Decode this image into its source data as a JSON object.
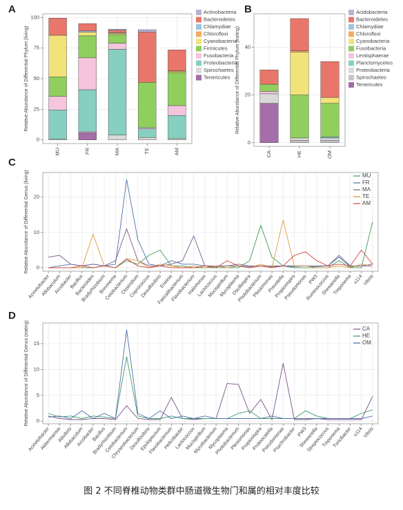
{
  "chart_data": [
    {
      "type": "bar",
      "stacked": true,
      "label": "A",
      "y_label": "Relative Abundance of Differential Phylum (living)",
      "categories": [
        "MU",
        "FR",
        "MA",
        "TE",
        "AM"
      ],
      "ylim": [
        -3,
        103
      ],
      "yticks": [
        0,
        25,
        50,
        75,
        100
      ],
      "grid": true,
      "series": [
        {
          "name": "Actinobacteria",
          "color": "#b9b3d3",
          "values": [
            0,
            0,
            1,
            2,
            0
          ]
        },
        {
          "name": "Bacteroidetes",
          "color": "#e8766a",
          "values": [
            14,
            6,
            2,
            41,
            17
          ]
        },
        {
          "name": "Chlamydiae",
          "color": "#9ec5df",
          "values": [
            0,
            1,
            0.5,
            0,
            0
          ]
        },
        {
          "name": "Chloroflexi",
          "color": "#f3ac62",
          "values": [
            0,
            0,
            0,
            0,
            0.5
          ]
        },
        {
          "name": "Cyanobacteria",
          "color": "#f1e27a",
          "values": [
            34,
            3,
            1,
            0,
            1
          ]
        },
        {
          "name": "Firmicutes",
          "color": "#90cf5e",
          "values": [
            16,
            18,
            7,
            37,
            27
          ]
        },
        {
          "name": "Fusobacteria",
          "color": "#f4c5dd",
          "values": [
            11,
            26,
            5,
            1,
            8
          ]
        },
        {
          "name": "Proteobacteria",
          "color": "#87cfc0",
          "values": [
            24,
            34,
            70,
            7,
            19
          ]
        },
        {
          "name": "Spirochaetes",
          "color": "#d9d9d9",
          "values": [
            0.5,
            1,
            4,
            2,
            1
          ]
        },
        {
          "name": "Tenericutes",
          "color": "#a66ea8",
          "values": [
            0,
            6,
            0,
            0,
            0
          ]
        }
      ]
    },
    {
      "type": "bar",
      "stacked": true,
      "label": "B",
      "y_label": "Relative Abundance of Differential Phylum (eating)",
      "categories": [
        "CA",
        "HE",
        "OM"
      ],
      "ylim": [
        -1.5,
        54
      ],
      "yticks": [
        0,
        20,
        40
      ],
      "grid": true,
      "series": [
        {
          "name": "Acidobacteria",
          "color": "#b9b3d3",
          "values": [
            0,
            0,
            0
          ]
        },
        {
          "name": "Bacteroidetes",
          "color": "#e8766a",
          "values": [
            6,
            13.5,
            15
          ]
        },
        {
          "name": "Chlamydiae",
          "color": "#9ec5df",
          "values": [
            0,
            0,
            0
          ]
        },
        {
          "name": "Chloroflexi",
          "color": "#f3ac62",
          "values": [
            0,
            0.5,
            0
          ]
        },
        {
          "name": "Cyanobacteria",
          "color": "#f1e27a",
          "values": [
            0,
            18,
            2.5
          ]
        },
        {
          "name": "Fusobacteria",
          "color": "#90cf5e",
          "values": [
            3,
            18,
            14
          ]
        },
        {
          "name": "Lentisphaerae",
          "color": "#f4c5dd",
          "values": [
            1,
            0,
            0
          ]
        },
        {
          "name": "Planctomycetes",
          "color": "#87cfc0",
          "values": [
            0,
            0,
            0.5
          ]
        },
        {
          "name": "Proteobacteria",
          "color": "#d9d9d9",
          "values": [
            4,
            1,
            1
          ]
        },
        {
          "name": "Spirochaetes",
          "color": "#c6c6c6",
          "values": [
            0,
            1,
            1
          ]
        },
        {
          "name": "Tenericutes",
          "color": "#a66ea8",
          "values": [
            16.5,
            0,
            0
          ]
        }
      ]
    },
    {
      "type": "line",
      "label": "C",
      "y_label": "Relative Abundance of Differential Genus (living)",
      "categories": [
        "Acinetobacter",
        "Allobaculum",
        "Arcobacter",
        "Bacillus",
        "Bacteroides",
        "Bradyrhizobium",
        "Brevinema",
        "Cetobacterium",
        "Clostridium",
        "Coprococcus",
        "Desulfovibrio",
        "Erwinia",
        "Faecalibacterium",
        "Flavobacterium",
        "Halomonas",
        "Lactococcus",
        "Mucispirillum",
        "Mycoplasma",
        "Oscillospira",
        "Photobacterium",
        "Plesiomonas",
        "Prevotella",
        "Propionispira",
        "Pseudomonas",
        "PW3",
        "Ruminococcus",
        "Shewanella",
        "Treponema",
        "u114",
        "Vibrio"
      ],
      "ylim": [
        -1,
        27
      ],
      "yticks": [
        0,
        10,
        20
      ],
      "grid": true,
      "series": [
        {
          "name": "MU",
          "color": "#3d9a50",
          "values": [
            0,
            0,
            0,
            0,
            0,
            0.5,
            0,
            2,
            1,
            3.5,
            5,
            0.5,
            0.5,
            0,
            0,
            0,
            0,
            0,
            2,
            12,
            3,
            0.5,
            0,
            0,
            0,
            0,
            2,
            0,
            0,
            13
          ]
        },
        {
          "name": "FR",
          "color": "#4a6fa5",
          "values": [
            0,
            0.5,
            1,
            0.5,
            1,
            0.5,
            1,
            25,
            8,
            1,
            0.5,
            2,
            1,
            1,
            0.5,
            0.3,
            0.5,
            0.5,
            0.3,
            0.5,
            0.3,
            0.5,
            0.3,
            0.5,
            0.3,
            0.5,
            3,
            0.3,
            0.5,
            1
          ]
        },
        {
          "name": "MA",
          "color": "#7a5a8a",
          "values": [
            3,
            3.5,
            1,
            0.5,
            1,
            0.5,
            2,
            11,
            2,
            0.5,
            0.5,
            1,
            2,
            9,
            0.5,
            0.5,
            0.5,
            1,
            0.5,
            0.5,
            0.5,
            0.5,
            0.5,
            0.5,
            0.5,
            0.5,
            3.5,
            0.5,
            0.5,
            0.5
          ]
        },
        {
          "name": "TE",
          "color": "#e09a3a",
          "values": [
            0,
            0,
            0,
            0,
            9.5,
            0.5,
            0,
            2.5,
            2,
            0,
            1,
            0.5,
            0,
            0.5,
            0,
            0.5,
            0,
            0.5,
            0,
            1,
            0,
            13.5,
            0.5,
            0.5,
            0,
            0,
            0.5,
            0,
            1,
            0.5
          ]
        },
        {
          "name": "AM",
          "color": "#d04040",
          "values": [
            0,
            0,
            0,
            0.5,
            0,
            0.5,
            0,
            2.5,
            0.5,
            0,
            0.5,
            0,
            0,
            0,
            0.5,
            0,
            2,
            0.5,
            0,
            0.5,
            0,
            0.5,
            3.5,
            4.5,
            2,
            0.5,
            1,
            0.5,
            5,
            1
          ]
        }
      ]
    },
    {
      "type": "line",
      "label": "D",
      "y_label": "Relative Abundance of Differential Genus (eating)",
      "categories": [
        "Acinetobacter",
        "Akkermansia",
        "Aliivibrio",
        "Allobaculum",
        "Arcobacter",
        "Bacillus",
        "Bradyrhizobium",
        "Cetobacterium",
        "Chryseobacterium",
        "Desulfovibrio",
        "Epulopiscium",
        "Flavobacterium",
        "Helicobacter",
        "Lactococcus",
        "Mucispirillum",
        "Mycobacterium",
        "Mycoplasma",
        "Photobacterium",
        "Plesiomonas",
        "Propionispira",
        "Proteocatella",
        "Pseudomonas",
        "Psychrobacter",
        "PW3",
        "Shewanella",
        "Streptococcus",
        "Treponema",
        "Turicibacter",
        "u114",
        "Vibrio"
      ],
      "ylim": [
        -0.5,
        19
      ],
      "yticks": [
        0,
        5,
        10,
        15
      ],
      "grid": true,
      "series": [
        {
          "name": "CA",
          "color": "#7a4f8a",
          "values": [
            1,
            0.5,
            0.3,
            0.3,
            0.5,
            0.5,
            0.3,
            3,
            0.5,
            0.3,
            0.3,
            4.6,
            0.5,
            0.3,
            0.5,
            0.5,
            7.3,
            7.1,
            1.5,
            4.2,
            0.3,
            11.2,
            0.3,
            0.3,
            0.5,
            0.3,
            0.3,
            0.3,
            0.3,
            4.8
          ]
        },
        {
          "name": "HE",
          "color": "#3a9a6a",
          "values": [
            1.5,
            0.8,
            1,
            0.5,
            1,
            0.8,
            0.5,
            12.5,
            1,
            0.5,
            0.5,
            1,
            0.5,
            0.5,
            0.5,
            0.5,
            0.5,
            1.5,
            2,
            0.5,
            0.5,
            0.5,
            0.5,
            2,
            1,
            0.5,
            0.5,
            0.5,
            1.5,
            2.2
          ]
        },
        {
          "name": "OM",
          "color": "#4b6ea8",
          "values": [
            0.8,
            1,
            0.5,
            2,
            0.5,
            1.5,
            0.5,
            17.7,
            1.5,
            0.5,
            2,
            0.5,
            1,
            0.5,
            1,
            0.5,
            0.5,
            0.5,
            0.5,
            0.5,
            1,
            0.5,
            0.5,
            0.5,
            0.5,
            0.5,
            0.5,
            0.5,
            0.5,
            1
          ]
        }
      ]
    }
  ],
  "caption": "图 2 不同脊椎动物类群中肠道微生物门和属的相对丰度比较"
}
